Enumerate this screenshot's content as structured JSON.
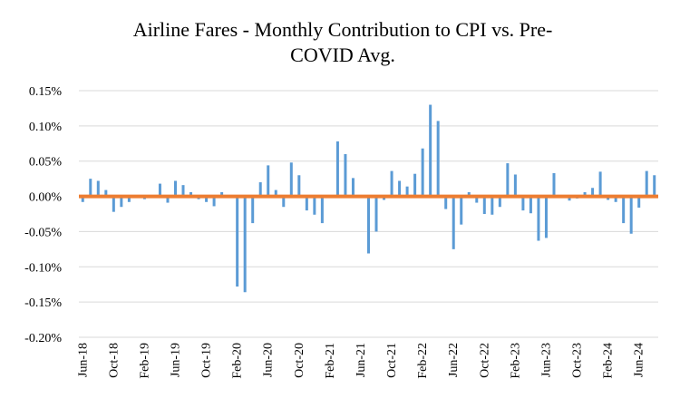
{
  "chart_data": {
    "type": "bar",
    "title_line1": "Airline Fares - Monthly Contribution to CPI vs. Pre-",
    "title_line2": "COVID Avg.",
    "xlabel": "",
    "ylabel": "",
    "ylim": [
      -0.2,
      0.15
    ],
    "y_ticks": [
      0.15,
      0.1,
      0.05,
      0.0,
      -0.05,
      -0.1,
      -0.15,
      -0.2
    ],
    "y_tick_labels": [
      "0.15%",
      "0.10%",
      "0.05%",
      "0.00%",
      "-0.05%",
      "-0.10%",
      "-0.15%",
      "-0.20%"
    ],
    "x_tick_labels": [
      "Jun-18",
      "Oct-18",
      "Feb-19",
      "Jun-19",
      "Oct-19",
      "Feb-20",
      "Jun-20",
      "Oct-20",
      "Feb-21",
      "Jun-21",
      "Oct-21",
      "Feb-22",
      "Jun-22",
      "Oct-22",
      "Feb-23",
      "Jun-23",
      "Oct-23",
      "Feb-24",
      "Jun-24"
    ],
    "x_tick_every": 4,
    "grid": true,
    "legend": "none",
    "colors": {
      "bars": "#5b9bd5",
      "baseline": "#ed7d31",
      "grid": "#d9d9d9"
    },
    "values": [
      -0.008,
      0.025,
      0.022,
      0.009,
      -0.022,
      -0.015,
      -0.008,
      0.0,
      -0.004,
      0.0,
      0.018,
      -0.009,
      0.022,
      0.016,
      0.006,
      -0.004,
      -0.008,
      -0.014,
      0.006,
      -0.002,
      -0.128,
      -0.136,
      -0.038,
      0.02,
      0.044,
      0.009,
      -0.015,
      0.048,
      0.03,
      -0.02,
      -0.026,
      -0.038,
      0.0,
      0.078,
      0.06,
      0.026,
      0.0,
      -0.081,
      -0.05,
      -0.005,
      0.036,
      0.022,
      0.014,
      0.032,
      0.068,
      0.13,
      0.107,
      -0.018,
      -0.075,
      -0.04,
      0.006,
      -0.009,
      -0.025,
      -0.026,
      -0.015,
      0.047,
      0.031,
      -0.02,
      -0.024,
      -0.063,
      -0.059,
      0.033,
      0.0,
      -0.006,
      -0.003,
      0.006,
      0.012,
      0.035,
      -0.005,
      -0.008,
      -0.038,
      -0.053,
      -0.016,
      0.036,
      0.03
    ]
  }
}
